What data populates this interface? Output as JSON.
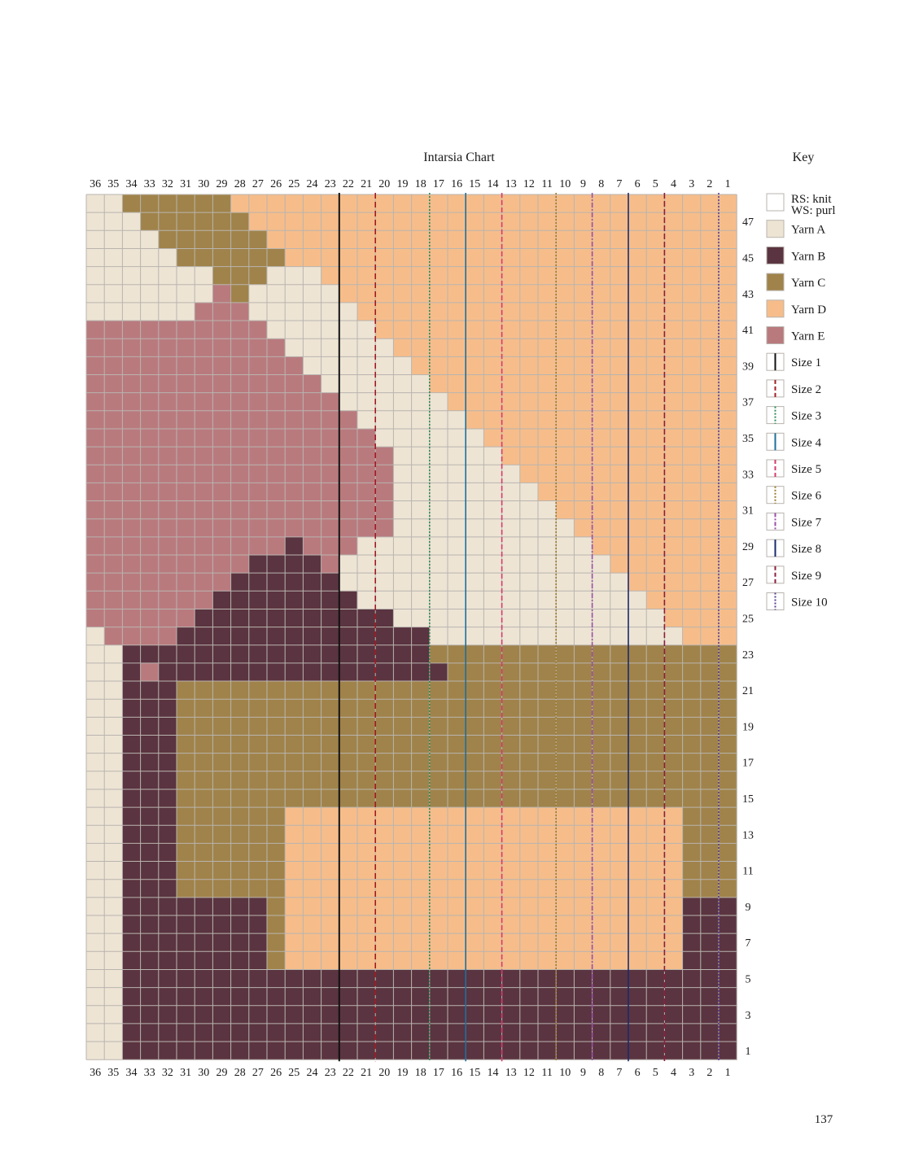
{
  "chart": {
    "title": "Intarsia Chart",
    "column_labels": [
      "36",
      "35",
      "34",
      "33",
      "32",
      "31",
      "30",
      "29",
      "28",
      "27",
      "26",
      "25",
      "24",
      "23",
      "22",
      "21",
      "20",
      "19",
      "18",
      "17",
      "16",
      "15",
      "14",
      "13",
      "12",
      "11",
      "10",
      "9",
      "8",
      "7",
      "6",
      "5",
      "4",
      "3",
      "2",
      "1"
    ],
    "row_labels": [
      "47",
      "45",
      "43",
      "41",
      "39",
      "37",
      "35",
      "33",
      "31",
      "29",
      "27",
      "25",
      "23",
      "21",
      "19",
      "17",
      "15",
      "13",
      "11",
      "9",
      "7",
      "5",
      "3",
      "1"
    ],
    "columns": 36,
    "rows": 48,
    "colors": {
      "O": "#ede4d4",
      "B": "#5a3440",
      "C": "#a0834a",
      "D": "#f6bd8a",
      "E": "#b97a7e",
      "grid": "#b9b4af"
    },
    "rows_top_to_bottom": [
      "OOCCCCCCDDDDDDDDDDDDDDDDDDDDDDDDDDDD",
      "OOOCCCCCCDDDDDDDDDDDDDDDDDDDDDDDDDDD",
      "OOOOCCCCCCDDDDDDDDDDDDDDDDDDDDDDDDDD",
      "OOOOOCCCCCCDDDDDDDDDDDDDDDDDDDDDDDDD",
      "OOOOOOOCCCOOODDDDDDDDDDDDDDDDDDDDDDD",
      "OOOOOOOOCOOOOODDDDDDDDDDDDDDDDDDDDDD",
      "OOOOOOOOOOOOOOODDDDDDDDDDDDDDDDDDDDD",
      "OOOOOOOOOOOOOOOODDDDDDDDDDDDDDDDDDDD",
      "OOOOOOOOOOOOOOOOODDDDDDDDDDDDDDDDDDD",
      "OOOOOOOOOOOOOOOOOODDDDDDDDDDDDDDDDDD",
      "OOOOOOOOOOOOOOOOOOODDDDDDDDDDDDDDDDD",
      "OOOOOOOOOOOOOOOOOOOODDDDDDDDDDDDDDDD",
      "OOOOOOOOOOOOOOOOOOOOODDDDDDDDDDDDDDD",
      "OOOOOOOOOOOOOOOOOOOOOODDDDDDDDDDDDDD",
      "OOOOOOOOOOOOOOOOOOOOOOODDDDDDDDDDDDD",
      "OOOOOOOOOOOOOOOOOOOOOOOODDDDDDDDDDDD",
      "OOOOOOOOOOOOOOOOOOOOOOOOODDDDDDDDDDD",
      "OOOOOOOOOOOOOOOOOOOOOOOOOODDDDDDDDDD",
      "OOOOOOOOOOOOOOOOOOOOOOOOOOODDDDDDDDD",
      "OOOOOOOOOOOOOOOOOOOOOOOOOOOODDDDDDDD",
      "OOOOOOOOOOOOOOOOOOOOOOOOOOOOODDDDDDD",
      "OOOOOOOOOOOOOOOOOOOOOOOOOOOOOODDDDDD",
      "OOOOOOOOOOOOOOOOOOOOOOOOOOOOOOODDDDD",
      "OOOOOOOOOOOOOOOOOOOOOOOOOOOOOOOODDDD",
      "OOOOOOOOOOOOOOOOOOOOOOOOOOOOOOOOODDD",
      "CCCCCCCCCCCCCCCCCCCCCCCCCCCCCCCCCCCC",
      "CCCCCCCCCCCCCCCCCCCCCCCCCCCCCCCCCCCC",
      "CCCCCCCCCCCCCCCCCCCCCCCCCCCCCCCCCCCC",
      "CCCCCCCCCCCCCCCCCCCCCCCCCCCCCCCCCCCC",
      "CCCCCCCCCCCCCCCCCCCCCCCCCCCCCCCCCCCC",
      "CCCCCCCCCCCCCCCCCCCCCCCCCCCCCCCCCCCC",
      "CCCCCCCCCCCCCCCCCCCCCCCCCCCCCCCCCCCC",
      "CCCCCCCCCCCCCCCCCCCCCCCCCCCCCCCCCCCC",
      "CCCCCCCCCCCCCCCCCCCCCCCCCCCCCCCCCCCC",
      "CCCCCCCCCCCCCCCCCCCCCCCCCCCCCCCCCCCC",
      "CCCCCCCCCCCCCCCCCCCCCCCCCCCCCCCCCCCC",
      "CCCCCCCCCCCCCCCCCCCCCCCCCCCCCCCCCCCC",
      "CCCCCCCCCCCCCCCCCCCCCCCCCCCCCCCCCCCC",
      "CCCCCCCCCCCCCCCCCCCCCCCCCCCCCCCCCCCC",
      "CCCCCCCCCCCCCCCCCCCCCCCCCCCCCCCCCCCC",
      "CCCCCCCCCCCCCCCCCCCCCCCCCCCCCCCCCCCC",
      "CCCCCCCCCCCCCCCCCCCCCCCCCCCCCCCCCCCC",
      "CCCCCCCCCCCCCCCCCCCCCCCCCCCCCCCCCCCC",
      "CCCCCCCCCCCCCCCCCCCCCCCCCCCCCCCCCCCC",
      "CCCCCCCCCCCCCCCCCCCCCCCCCCCCCCCCCCCC",
      "CCCCCCCCCCCCCCCCCCCCCCCCCCCCCCCCCCCC",
      "CCCCCCCCCCCCCCCCCCCCCCCCCCCCCCCCCCCC",
      "CCCCCCCCCCCCCCCCCCCCCCCCCCCCCCCCCCCC"
    ],
    "overlays": [
      {
        "color": "E",
        "rows": [
          [
            5,
            7,
            7
          ],
          [
            6,
            6,
            8
          ],
          [
            7,
            0,
            9
          ],
          [
            8,
            0,
            10
          ],
          [
            9,
            0,
            11
          ],
          [
            10,
            0,
            12
          ],
          [
            11,
            0,
            13
          ],
          [
            12,
            0,
            14
          ],
          [
            13,
            0,
            15
          ],
          [
            14,
            0,
            16
          ],
          [
            15,
            0,
            16
          ],
          [
            16,
            0,
            16
          ],
          [
            17,
            0,
            16
          ],
          [
            18,
            0,
            16
          ],
          [
            19,
            0,
            14
          ],
          [
            20,
            0,
            13
          ],
          [
            21,
            0,
            12
          ],
          [
            22,
            0,
            12
          ],
          [
            23,
            0,
            11
          ],
          [
            24,
            0,
            12
          ],
          [
            25,
            2,
            11
          ],
          [
            26,
            3,
            3
          ]
        ]
      },
      {
        "color": "B",
        "rows": [
          [
            19,
            11,
            11
          ],
          [
            20,
            9,
            12
          ],
          [
            21,
            8,
            13
          ],
          [
            22,
            7,
            14
          ],
          [
            23,
            6,
            16
          ],
          [
            24,
            5,
            18
          ],
          [
            25,
            2,
            18
          ],
          [
            26,
            2,
            2
          ],
          [
            26,
            4,
            19
          ]
        ]
      },
      {
        "color": "O",
        "rows": [
          [
            24,
            0,
            0
          ],
          [
            25,
            0,
            1
          ],
          [
            26,
            0,
            1
          ],
          [
            27,
            0,
            1
          ],
          [
            28,
            0,
            1
          ],
          [
            29,
            0,
            1
          ],
          [
            30,
            0,
            1
          ],
          [
            31,
            0,
            1
          ],
          [
            32,
            0,
            1
          ],
          [
            33,
            0,
            1
          ],
          [
            34,
            0,
            1
          ],
          [
            35,
            0,
            1
          ],
          [
            36,
            0,
            1
          ],
          [
            37,
            0,
            1
          ],
          [
            38,
            0,
            1
          ],
          [
            39,
            0,
            1
          ],
          [
            40,
            0,
            1
          ],
          [
            41,
            0,
            1
          ],
          [
            42,
            0,
            1
          ],
          [
            43,
            0,
            1
          ],
          [
            44,
            0,
            1
          ],
          [
            45,
            0,
            1
          ],
          [
            46,
            0,
            1
          ],
          [
            47,
            0,
            1
          ]
        ]
      },
      {
        "color": "B",
        "rows": [
          [
            27,
            2,
            4
          ],
          [
            28,
            2,
            4
          ],
          [
            29,
            2,
            4
          ],
          [
            30,
            2,
            4
          ],
          [
            31,
            2,
            4
          ],
          [
            32,
            2,
            4
          ],
          [
            33,
            2,
            4
          ],
          [
            34,
            2,
            4
          ],
          [
            35,
            2,
            4
          ],
          [
            36,
            2,
            4
          ],
          [
            37,
            2,
            4
          ],
          [
            38,
            2,
            4
          ],
          [
            39,
            2,
            9
          ],
          [
            40,
            2,
            9
          ],
          [
            41,
            2,
            9
          ],
          [
            42,
            2,
            9
          ],
          [
            43,
            2,
            35
          ],
          [
            44,
            2,
            35
          ],
          [
            45,
            2,
            35
          ],
          [
            46,
            2,
            35
          ],
          [
            47,
            2,
            35
          ]
        ]
      },
      {
        "color": "D",
        "rows": [
          [
            34,
            11,
            32
          ],
          [
            35,
            11,
            32
          ],
          [
            36,
            11,
            32
          ],
          [
            37,
            11,
            32
          ],
          [
            38,
            11,
            32
          ],
          [
            39,
            11,
            32
          ],
          [
            40,
            11,
            32
          ],
          [
            41,
            11,
            32
          ],
          [
            42,
            11,
            32
          ]
        ]
      },
      {
        "color": "B",
        "rows": [
          [
            39,
            33,
            35
          ],
          [
            40,
            33,
            35
          ],
          [
            41,
            33,
            35
          ],
          [
            42,
            33,
            35
          ]
        ]
      }
    ],
    "size_lines": [
      {
        "size": 1,
        "after_col": 14,
        "color": "#111111",
        "dash": "none"
      },
      {
        "size": 2,
        "after_col": 16,
        "color": "#a01c22",
        "dash": "7,4"
      },
      {
        "size": 3,
        "after_col": 19,
        "color": "#2e8b57",
        "dash": "2,2"
      },
      {
        "size": 4,
        "after_col": 21,
        "color": "#1f6f9a",
        "dash": "none"
      },
      {
        "size": 5,
        "after_col": 23,
        "color": "#d23c6e",
        "dash": "6,3"
      },
      {
        "size": 6,
        "after_col": 26,
        "color": "#9a7a2e",
        "dash": "2,2"
      },
      {
        "size": 7,
        "after_col": 28,
        "color": "#9b4fa8",
        "dash": "6,2,2,2"
      },
      {
        "size": 8,
        "after_col": 30,
        "color": "#1a2a6c",
        "dash": "none"
      },
      {
        "size": 9,
        "after_col": 32,
        "color": "#8a1f3d",
        "dash": "7,3"
      },
      {
        "size": 10,
        "after_col": 35,
        "color": "#5b3c8f",
        "dash": "2,2"
      }
    ]
  },
  "key": {
    "title": "Key",
    "items": [
      {
        "label_lines": [
          "RS: knit",
          "WS: purl"
        ],
        "swatch": "plain",
        "color": "#ffffff"
      },
      {
        "label_lines": [
          "Yarn A"
        ],
        "swatch": "fill",
        "color": "#ede4d4"
      },
      {
        "label_lines": [
          "Yarn B"
        ],
        "swatch": "fill",
        "color": "#5a3440"
      },
      {
        "label_lines": [
          "Yarn C"
        ],
        "swatch": "fill",
        "color": "#a0834a"
      },
      {
        "label_lines": [
          "Yarn D"
        ],
        "swatch": "fill",
        "color": "#f6bd8a"
      },
      {
        "label_lines": [
          "Yarn E"
        ],
        "swatch": "fill",
        "color": "#b97a7e"
      },
      {
        "label_lines": [
          "Size 1"
        ],
        "swatch": "line",
        "color": "#111111",
        "dash": "none"
      },
      {
        "label_lines": [
          "Size 2"
        ],
        "swatch": "line",
        "color": "#a01c22",
        "dash": "5,3"
      },
      {
        "label_lines": [
          "Size 3"
        ],
        "swatch": "line",
        "color": "#2e8b57",
        "dash": "2,2"
      },
      {
        "label_lines": [
          "Size 4"
        ],
        "swatch": "line",
        "color": "#1f6f9a",
        "dash": "none"
      },
      {
        "label_lines": [
          "Size 5"
        ],
        "swatch": "line",
        "color": "#d23c6e",
        "dash": "5,3"
      },
      {
        "label_lines": [
          "Size 6"
        ],
        "swatch": "line",
        "color": "#9a7a2e",
        "dash": "2,2"
      },
      {
        "label_lines": [
          "Size 7"
        ],
        "swatch": "line",
        "color": "#9b4fa8",
        "dash": "5,2,2,2"
      },
      {
        "label_lines": [
          "Size 8"
        ],
        "swatch": "line",
        "color": "#1a2a6c",
        "dash": "none"
      },
      {
        "label_lines": [
          "Size 9"
        ],
        "swatch": "line",
        "color": "#8a1f3d",
        "dash": "5,3"
      },
      {
        "label_lines": [
          "Size 10"
        ],
        "swatch": "line",
        "color": "#5b3c8f",
        "dash": "2,2"
      }
    ]
  },
  "page_number": "137"
}
